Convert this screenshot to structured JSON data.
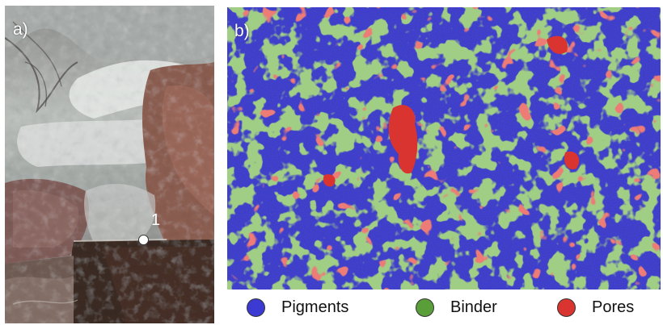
{
  "panel_a": {
    "label": "a)",
    "point_label": "1"
  },
  "panel_b": {
    "label": "b)"
  },
  "legend": {
    "items": [
      {
        "label": "Pigments",
        "color": "#3b3bd4"
      },
      {
        "label": "Binder",
        "color": "#5a9e3a"
      },
      {
        "label": "Pores",
        "color": "#d9342f"
      }
    ]
  },
  "colors": {
    "pigments": "#3b3bd4",
    "binder": "#5a9e3a",
    "pores": "#d9342f"
  }
}
